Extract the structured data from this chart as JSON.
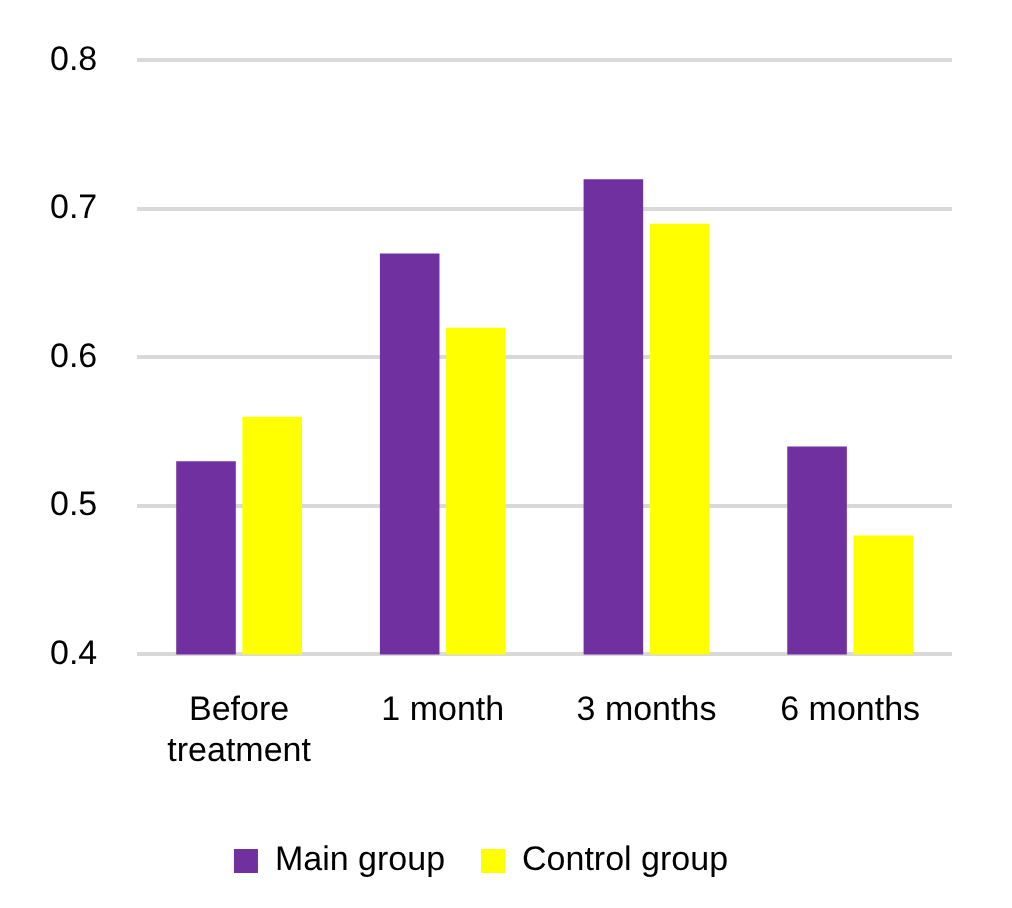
{
  "chart_data": {
    "type": "bar",
    "categories": [
      "Before treatment",
      "1 month",
      "3 months",
      "6 months"
    ],
    "series": [
      {
        "name": "Main group",
        "color": "#7030a0",
        "values": [
          0.53,
          0.67,
          0.72,
          0.54
        ]
      },
      {
        "name": "Control group",
        "color": "#ffff00",
        "values": [
          0.56,
          0.62,
          0.69,
          0.48
        ]
      }
    ],
    "ylim": [
      0.4,
      0.8
    ],
    "yticks": [
      0.4,
      0.5,
      0.6,
      0.7,
      0.8
    ],
    "grid": "y",
    "legend": "bottom"
  }
}
